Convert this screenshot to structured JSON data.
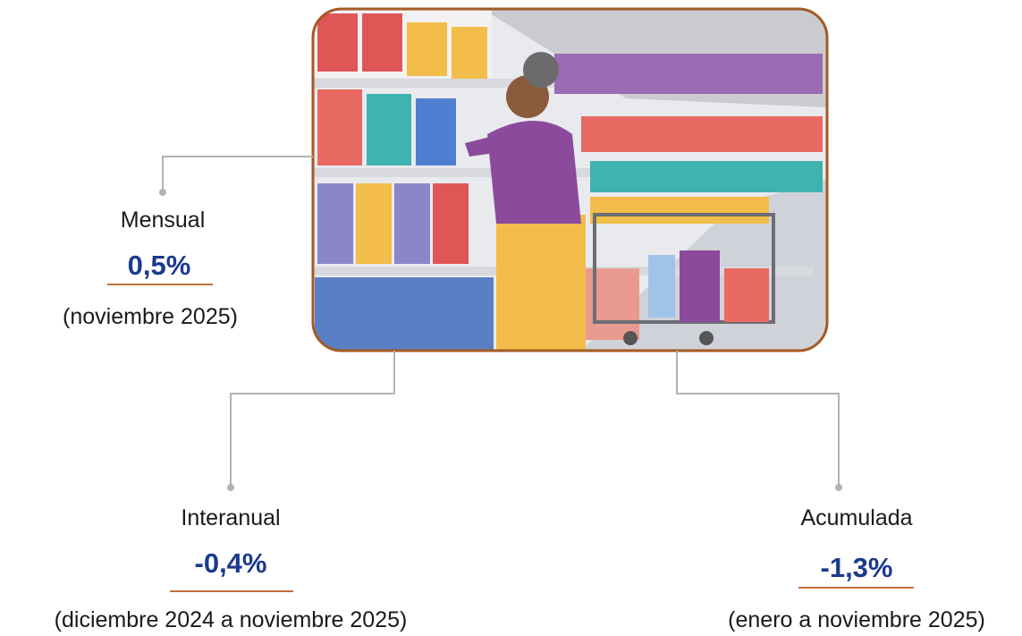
{
  "items": [
    {
      "label": "Mensual",
      "value": "0,5%",
      "period": "(noviembre 2025)"
    },
    {
      "label": "Interanual",
      "value": "-0,4%",
      "period": "(diciembre 2024 a noviembre 2025)"
    },
    {
      "label": "Acumulada",
      "value": "-1,3%",
      "period": "(enero a noviembre 2025)"
    }
  ]
}
